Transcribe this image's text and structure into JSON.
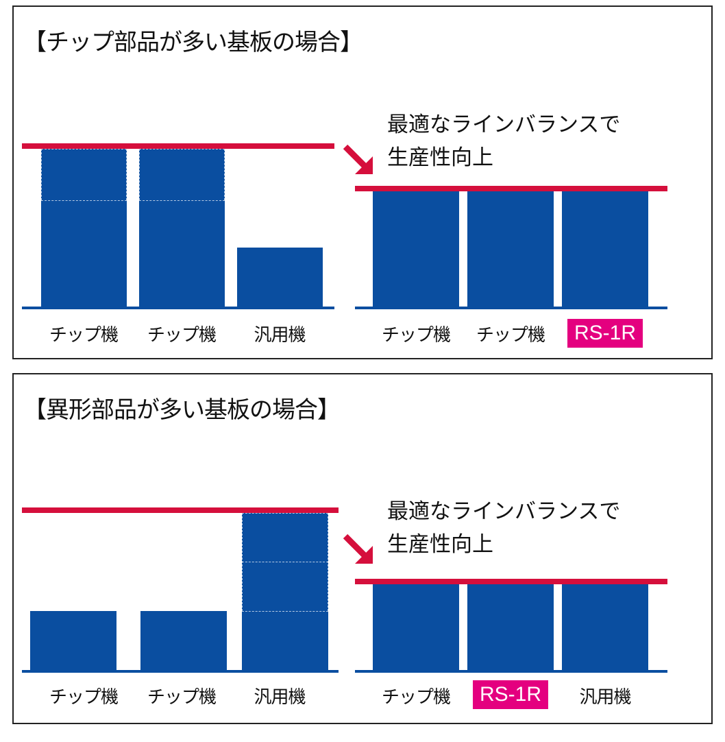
{
  "panels": [
    {
      "title": "【チップ部品が多い基板の場合】",
      "note_lines": [
        "最適なラインバランスで",
        "生産性向上"
      ],
      "before_labels": [
        "チップ機",
        "チップ機",
        "汎用機"
      ],
      "after_labels": [
        "チップ機",
        "チップ機",
        "RS-1R"
      ]
    },
    {
      "title": "【異形部品が多い基板の場合】",
      "note_lines": [
        "最適なラインバランスで",
        "生産性向上"
      ],
      "before_labels": [
        "チップ機",
        "チップ機",
        "汎用機"
      ],
      "after_labels": [
        "チップ機",
        "RS-1R",
        "汎用機"
      ]
    }
  ],
  "colors": {
    "bar": "#0a4ea0",
    "limit_line": "#d50f3c",
    "highlight": "#e4007f"
  },
  "icons": [
    "arrow-down-right-icon"
  ]
}
